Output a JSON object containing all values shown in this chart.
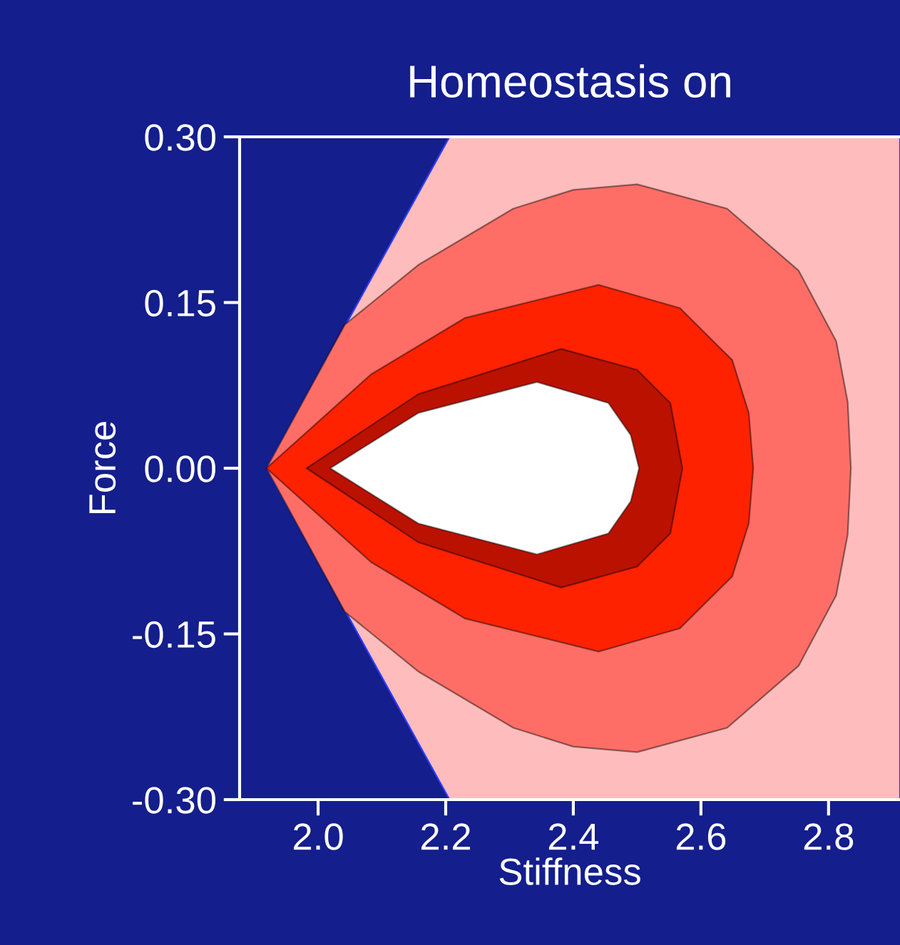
{
  "chart_data": {
    "type": "area",
    "title": "Homeostasis on",
    "xlabel": "Stiffness",
    "ylabel": "Force",
    "xlim": [
      1.877,
      2.912
    ],
    "xticks": [
      {
        "value": 2.0,
        "label": "2.0"
      },
      2.2,
      2.4,
      2.6,
      2.8
    ],
    "ylim": [
      -0.3,
      0.3
    ],
    "yticks": [
      {
        "value": 0.3,
        "label": "0.30"
      },
      {
        "value": 0.15,
        "label": "0.15"
      },
      {
        "value": 0,
        "label": "0.00"
      },
      {
        "value": -0.15,
        "label": "-0.15"
      },
      {
        "value": -0.3,
        "label": "-0.30"
      }
    ],
    "series": [
      {
        "color": "#ffbcbc",
        "x": [
          1.919,
          2.206,
          2.912,
          2.912,
          2.206
        ],
        "values": [
          0,
          0.3,
          0.3,
          -0.3,
          -0.3
        ]
      },
      {
        "color": "#ff6e66",
        "x": [
          1.919,
          2.042,
          2.157,
          2.306,
          2.4,
          2.5,
          2.641,
          2.753,
          2.812,
          2.83,
          2.835,
          2.83,
          2.812,
          2.753,
          2.641,
          2.5,
          2.4,
          2.306,
          2.157,
          2.042
        ],
        "values": [
          0,
          0.13,
          0.184,
          0.235,
          0.252,
          0.257,
          0.235,
          0.179,
          0.115,
          0.06,
          0,
          -0.06,
          -0.115,
          -0.179,
          -0.235,
          -0.257,
          -0.252,
          -0.235,
          -0.184,
          -0.13
        ]
      },
      {
        "color": "#ff2200",
        "x": [
          1.919,
          2.083,
          2.23,
          2.44,
          2.567,
          2.649,
          2.675,
          2.682,
          2.675,
          2.649,
          2.567,
          2.44,
          2.23,
          2.083
        ],
        "values": [
          0,
          0.085,
          0.136,
          0.166,
          0.145,
          0.098,
          0.05,
          0,
          -0.05,
          -0.098,
          -0.145,
          -0.166,
          -0.136,
          -0.085
        ]
      },
      {
        "color": "#bb1100",
        "x": [
          1.982,
          2.157,
          2.381,
          2.5,
          2.552,
          2.571,
          2.552,
          2.5,
          2.381,
          2.157
        ],
        "values": [
          0,
          0.067,
          0.108,
          0.089,
          0.059,
          0,
          -0.059,
          -0.089,
          -0.108,
          -0.067
        ]
      },
      {
        "color": "#ffffff",
        "x": [
          2.019,
          2.157,
          2.343,
          2.455,
          2.49,
          2.503,
          2.49,
          2.455,
          2.343,
          2.157
        ],
        "values": [
          0,
          0.05,
          0.078,
          0.059,
          0.03,
          0,
          -0.03,
          -0.059,
          -0.078,
          -0.05
        ]
      }
    ]
  }
}
